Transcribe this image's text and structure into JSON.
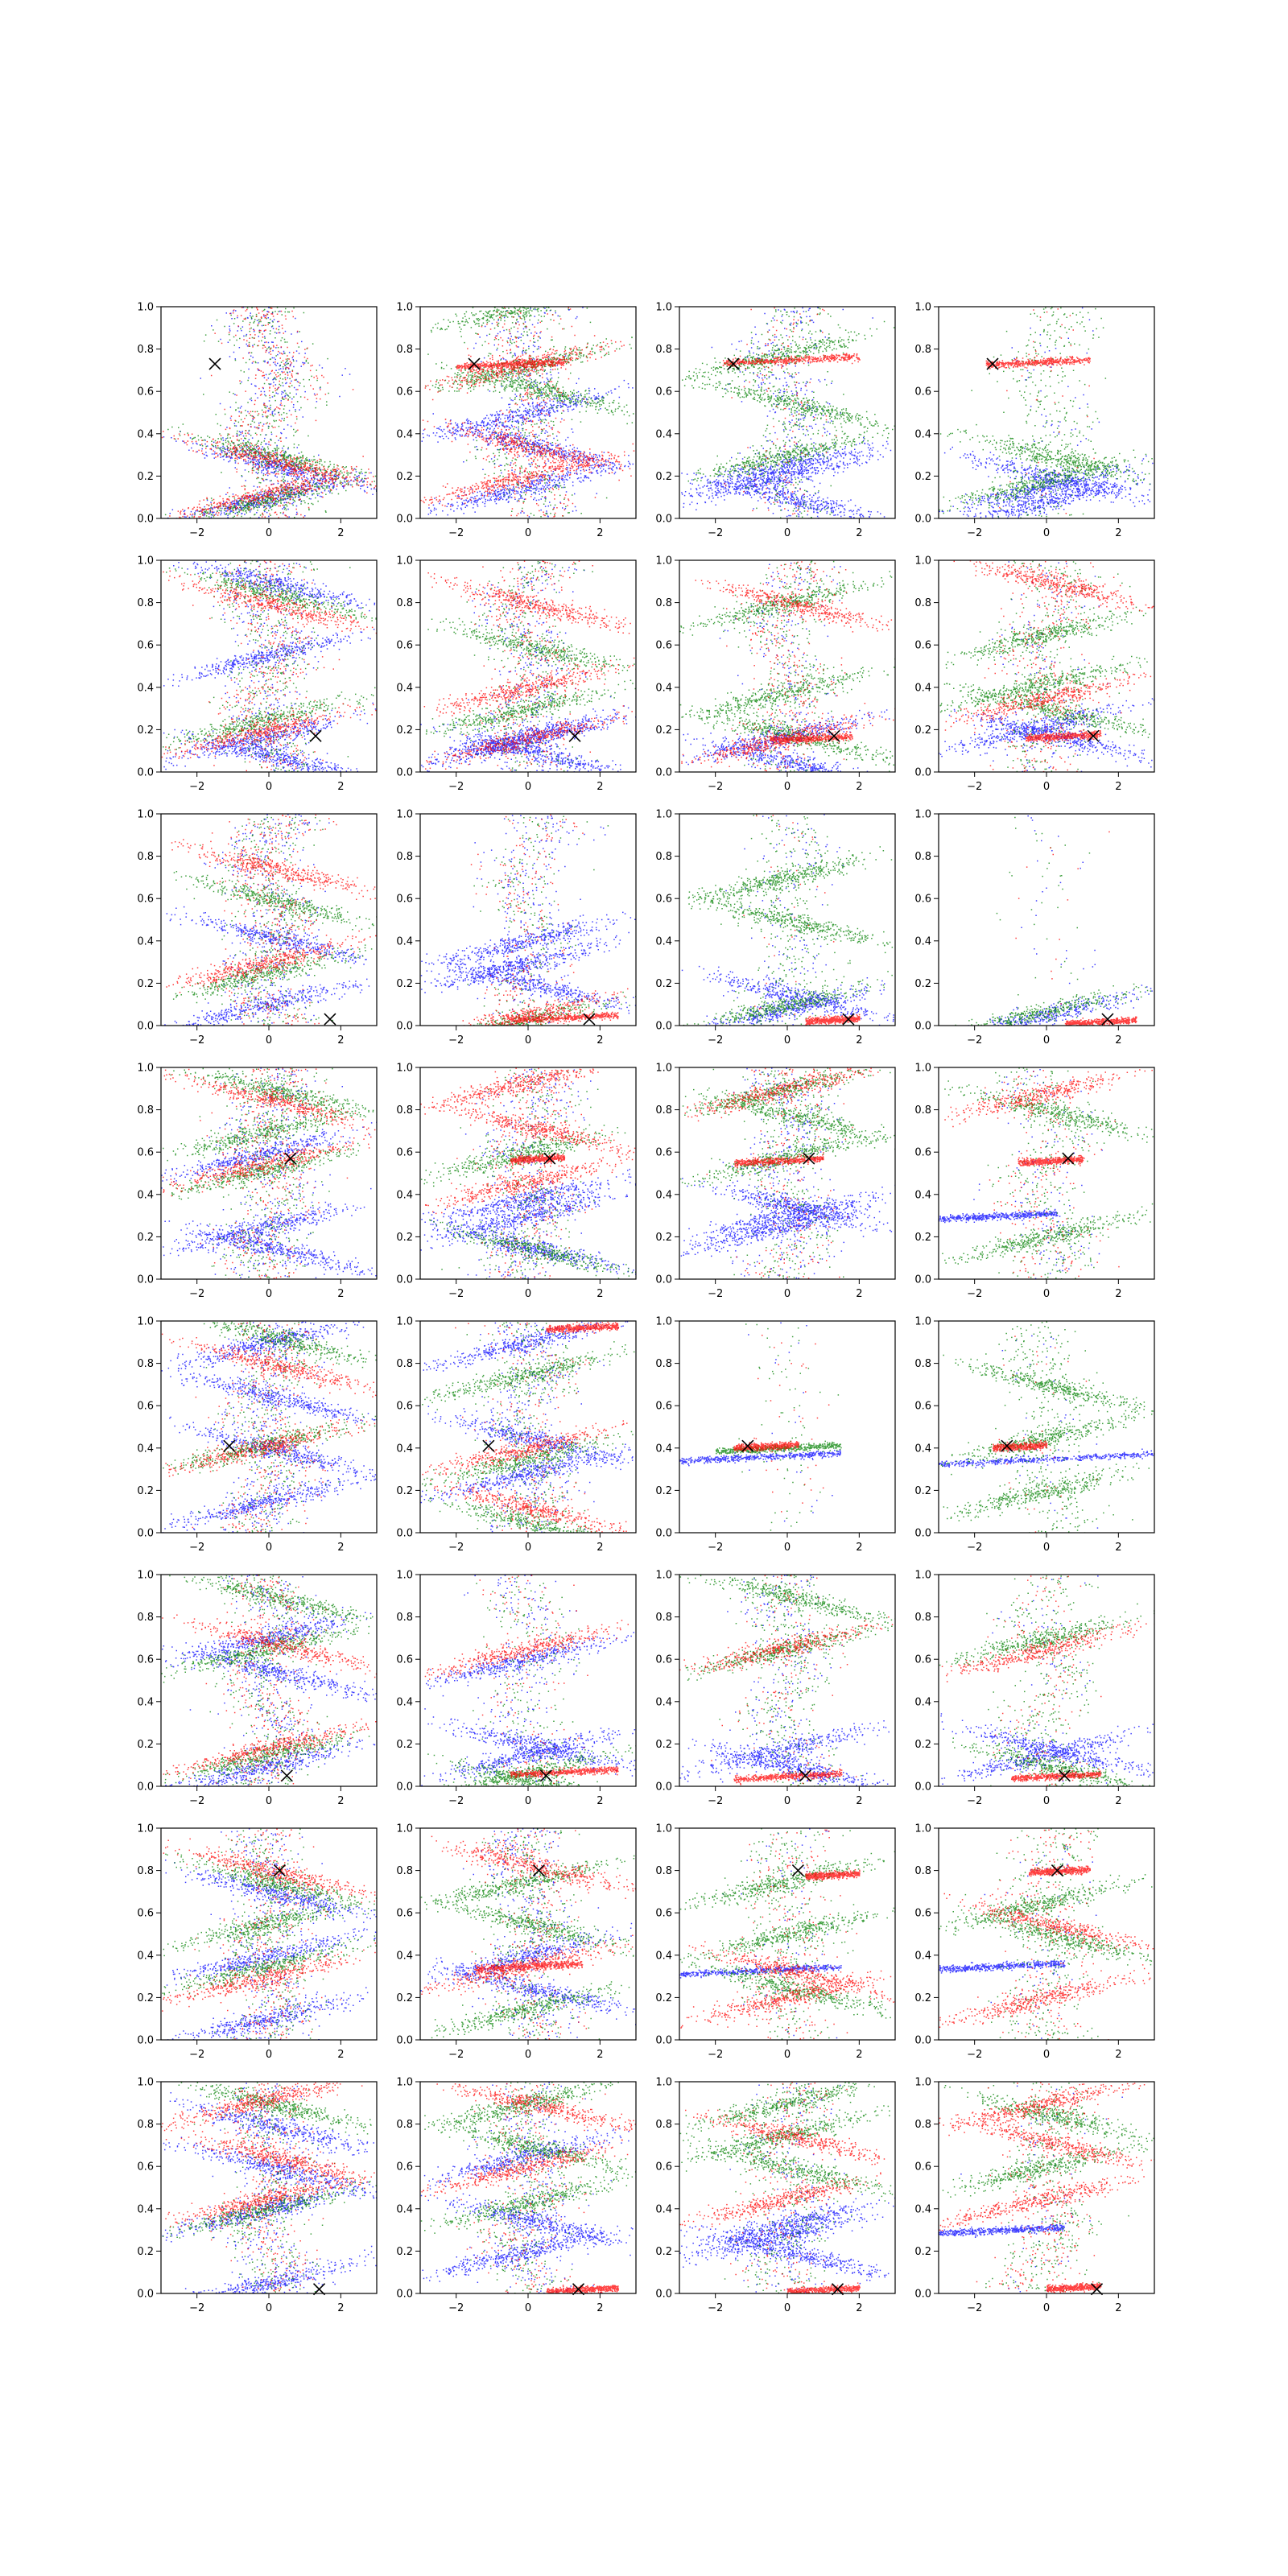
{
  "chart_data": {
    "type": "scatter",
    "layout": {
      "rows": 8,
      "cols": 4
    },
    "xlim": [
      -3,
      3
    ],
    "ylim": [
      0,
      1
    ],
    "xticks": [
      -2,
      0,
      2
    ],
    "yticks": [
      0.0,
      0.2,
      0.4,
      0.6,
      0.8,
      1.0
    ],
    "xtick_labels": [
      "−2",
      "0",
      "2"
    ],
    "ytick_labels": [
      "0.0",
      "0.2",
      "0.4",
      "0.6",
      "0.8",
      "1.0"
    ],
    "grid": false,
    "legend": "none",
    "series_colors": {
      "blue": "#0000ff",
      "green": "#008000",
      "red": "#ff0000"
    },
    "marker_color": "#000000",
    "rows_data": [
      {
        "marker": [
          -1.5,
          0.73
        ],
        "cols": [
          {
            "blue": [
              0.1,
              0.26,
              2.4
            ],
            "green": [
              0.09,
              0.3,
              2.2
            ],
            "red": [
              0.12,
              0.28,
              2.0
            ],
            "blue_bg": 0.6,
            "green_bg": 0.6,
            "red_bg": 0.6
          },
          {
            "blue": [
              0.15,
              0.35,
              0.5
            ],
            "green": [
              0.72,
              0.62,
              1.0
            ],
            "red": [
              0.73,
              0.34,
              0.2
            ],
            "red_line": [
              0.73,
              -2.0,
              1.0
            ],
            "blue_bg": 0.5,
            "green_bg": 0.5,
            "red_bg": 0.5
          },
          {
            "blue": [
              0.2,
              0.1,
              0.25
            ],
            "green": [
              0.78,
              0.55,
              0.3
            ],
            "red_line": [
              0.75,
              -1.8,
              2.0
            ],
            "blue_bg": 0.5,
            "green_bg": 0.5,
            "red_bg": 0.2
          },
          {
            "blue": [
              0.08,
              0.2,
              0.15
            ],
            "green": [
              0.18,
              0.3
            ],
            "red_line": [
              0.74,
              -1.7,
              1.2
            ],
            "blue_bg": 0.1,
            "green_bg": 0.5,
            "red_bg": 0.05
          }
        ]
      },
      {
        "marker": [
          1.3,
          0.17
        ],
        "cols": [
          {
            "blue": [
              0.17,
              0.08,
              0.55,
              0.9
            ],
            "green": [
              0.25,
              0.85
            ],
            "red": [
              0.2,
              0.8
            ],
            "blue_bg": 0.5,
            "green_bg": 0.6,
            "red_bg": 0.6
          },
          {
            "blue": [
              0.17,
              0.1,
              0.15
            ],
            "green": [
              0.3,
              0.6
            ],
            "red": [
              0.16,
              0.8,
              0.4
            ],
            "blue_bg": 0.5,
            "green_bg": 0.5,
            "red_bg": 0.5
          },
          {
            "blue": [
              0.17,
              0.05
            ],
            "green": [
              0.38,
              0.18,
              0.8
            ],
            "red": [
              0.16,
              0.8
            ],
            "red_line": [
              0.16,
              -0.5,
              1.8
            ],
            "blue_bg": 0.3,
            "green_bg": 0.5,
            "red_bg": 0.5
          },
          {
            "blue": [
              0.22,
              0.18
            ],
            "green": [
              0.42,
              0.3,
              0.65
            ],
            "red": [
              0.35,
              0.9
            ],
            "red_line": [
              0.17,
              -0.6,
              1.5
            ],
            "blue_bg": 0.2,
            "green_bg": 0.5,
            "red_bg": 0.5
          }
        ]
      },
      {
        "marker": [
          1.7,
          0.03
        ],
        "cols": [
          {
            "blue": [
              0.1,
              0.42
            ],
            "green": [
              0.25,
              0.6
            ],
            "red": [
              0.3,
              0.75
            ],
            "blue_bg": 0.5,
            "green_bg": 0.6,
            "red_bg": 0.6
          },
          {
            "blue": [
              0.3,
              0.2,
              0.4
            ],
            "green": [
              0.03
            ],
            "red": [
              0.05
            ],
            "red_line": [
              0.04,
              -0.5,
              2.5
            ],
            "blue_bg": 0.4,
            "green_bg": 0.3,
            "red_bg": 0.3
          },
          {
            "blue": [
              0.08,
              0.15
            ],
            "green": [
              0.1,
              0.5,
              0.7
            ],
            "red_line": [
              0.03,
              0.5,
              2.0
            ],
            "blue_bg": 0.2,
            "green_bg": 0.5,
            "red_bg": 0.05
          },
          {
            "blue": [
              0.05
            ],
            "green": [
              0.07
            ],
            "red_line": [
              0.02,
              0.5,
              2.5
            ],
            "blue_bg": 0.05,
            "green_bg": 0.05,
            "red_bg": 0.02
          }
        ]
      },
      {
        "marker": [
          0.6,
          0.57
        ],
        "cols": [
          {
            "blue": [
              0.25,
              0.15,
              0.6
            ],
            "green": [
              0.52,
              0.9,
              0.7
            ],
            "red": [
              0.55,
              0.85
            ],
            "blue_bg": 0.5,
            "green_bg": 0.6,
            "red_bg": 0.5
          },
          {
            "blue": [
              0.3,
              0.15,
              0.38
            ],
            "green": [
              0.6,
              0.15
            ],
            "red": [
              0.93,
              0.72,
              0.46
            ],
            "red_line": [
              0.57,
              -0.5,
              1.0
            ],
            "blue_bg": 0.5,
            "green_bg": 0.5,
            "red_bg": 0.4
          },
          {
            "blue": [
              0.3,
              0.35,
              0.25
            ],
            "green": [
              0.58,
              0.78,
              0.9
            ],
            "red": [
              0.9
            ],
            "red_line": [
              0.56,
              -1.5,
              1.0
            ],
            "blue_bg": 0.5,
            "green_bg": 0.5,
            "red_bg": 0.3
          },
          {
            "blue_line": [
              0.3,
              -3.0,
              0.3
            ],
            "green": [
              0.2,
              0.8
            ],
            "red": [
              0.88
            ],
            "red_line": [
              0.56,
              -0.8,
              1.0
            ],
            "blue_bg": 0.2,
            "green_bg": 0.5,
            "red_bg": 0.3
          }
        ]
      },
      {
        "marker": [
          -1.1,
          0.41
        ],
        "cols": [
          {
            "blue": [
              0.9,
              0.4,
              0.15,
              0.65
            ],
            "green": [
              0.42,
              0.93
            ],
            "red": [
              0.41,
              0.8
            ],
            "blue_bg": 0.5,
            "green_bg": 0.5,
            "red_bg": 0.5
          },
          {
            "blue": [
              0.28,
              0.45,
              0.9
            ],
            "green": [
              0.35,
              0.05,
              0.75
            ],
            "red": [
              0.4,
              0.12
            ],
            "red_line": [
              0.97,
              0.5,
              2.5
            ],
            "blue_bg": 0.5,
            "green_bg": 0.5,
            "red_bg": 0.3
          },
          {
            "blue_line": [
              0.36,
              -3.0,
              1.5
            ],
            "green_line": [
              0.4,
              -2.0,
              1.5
            ],
            "red_line": [
              0.41,
              -1.5,
              0.3
            ],
            "blue_bg": 0.03,
            "green_bg": 0.1,
            "red_bg": 0.05
          },
          {
            "blue_line": [
              0.35,
              -3.0,
              3.0
            ],
            "green": [
              0.45,
              0.7,
              0.2
            ],
            "red_line": [
              0.41,
              -1.5,
              0.0
            ],
            "blue_bg": 0.05,
            "green_bg": 0.5,
            "red_bg": 0.05
          }
        ]
      },
      {
        "marker": [
          0.5,
          0.05
        ],
        "cols": [
          {
            "blue": [
              0.1,
              0.55,
              0.7
            ],
            "green": [
              0.15,
              0.9,
              0.65
            ],
            "red": [
              0.18,
              0.68
            ],
            "blue_bg": 0.5,
            "green_bg": 0.5,
            "red_bg": 0.5
          },
          {
            "blue": [
              0.15,
              0.2,
              0.6
            ],
            "green": [
              0.07,
              0.03
            ],
            "red": [
              0.65
            ],
            "red_line": [
              0.07,
              -0.5,
              2.5
            ],
            "blue_bg": 0.3,
            "green_bg": 0.3,
            "red_bg": 0.2
          },
          {
            "blue": [
              0.18,
              0.1
            ],
            "green": [
              0.65,
              0.9
            ],
            "red": [
              0.66
            ],
            "red_line": [
              0.05,
              -1.5,
              1.5
            ],
            "blue_bg": 0.3,
            "green_bg": 0.5,
            "red_bg": 0.2
          },
          {
            "blue": [
              0.15,
              0.18
            ],
            "green": [
              0.7,
              0.1
            ],
            "red": [
              0.65
            ],
            "red_line": [
              0.05,
              -1.0,
              1.5
            ],
            "blue_bg": 0.1,
            "green_bg": 0.5,
            "red_bg": 0.2
          }
        ]
      },
      {
        "marker": [
          0.3,
          0.8
        ],
        "cols": [
          {
            "blue": [
              0.4,
              0.7,
              0.1
            ],
            "green": [
              0.35,
              0.75,
              0.55
            ],
            "red": [
              0.3,
              0.8
            ],
            "blue_bg": 0.5,
            "green_bg": 0.5,
            "red_bg": 0.5
          },
          {
            "blue": [
              0.4,
              0.25
            ],
            "green": [
              0.75,
              0.55,
              0.15
            ],
            "red": [
              0.35,
              0.83
            ],
            "red_line": [
              0.35,
              -1.5,
              1.5
            ],
            "blue_bg": 0.5,
            "green_bg": 0.5,
            "red_bg": 0.4
          },
          {
            "blue_line": [
              0.33,
              -3.0,
              1.5
            ],
            "green": [
              0.75,
              0.25,
              0.5
            ],
            "red": [
              0.2,
              0.33
            ],
            "red_line": [
              0.78,
              0.5,
              2.0
            ],
            "blue_bg": 0.1,
            "green_bg": 0.5,
            "red_bg": 0.3
          },
          {
            "blue_line": [
              0.35,
              -3.0,
              0.5
            ],
            "green": [
              0.65,
              0.5
            ],
            "red": [
              0.2,
              0.55
            ],
            "red_line": [
              0.8,
              -0.5,
              1.2
            ],
            "blue_bg": 0.1,
            "green_bg": 0.5,
            "red_bg": 0.3
          }
        ]
      },
      {
        "marker": [
          1.4,
          0.02
        ],
        "cols": [
          {
            "blue": [
              0.05,
              0.6,
              0.4,
              0.8
            ],
            "green": [
              0.4,
              0.9
            ],
            "red": [
              0.45,
              0.65,
              0.92
            ],
            "blue_bg": 0.5,
            "green_bg": 0.5,
            "red_bg": 0.5
          },
          {
            "blue": [
              0.2,
              0.35,
              0.65
            ],
            "green": [
              0.43,
              0.7,
              0.9
            ],
            "red": [
              0.6,
              0.9
            ],
            "red_line": [
              0.02,
              0.5,
              2.5
            ],
            "blue_bg": 0.5,
            "green_bg": 0.5,
            "red_bg": 0.4
          },
          {
            "blue": [
              0.28,
              0.2,
              0.33
            ],
            "green": [
              0.75,
              0.6,
              0.9
            ],
            "red": [
              0.45,
              0.75
            ],
            "red_line": [
              0.02,
              0.0,
              2.0
            ],
            "blue_bg": 0.3,
            "green_bg": 0.5,
            "red_bg": 0.3
          },
          {
            "blue_line": [
              0.3,
              -3.0,
              0.5
            ],
            "green": [
              0.6,
              0.85
            ],
            "red": [
              0.45,
              0.72,
              0.9
            ],
            "red_line": [
              0.03,
              0.0,
              1.5
            ],
            "blue_bg": 0.1,
            "green_bg": 0.5,
            "red_bg": 0.4
          }
        ]
      }
    ]
  }
}
